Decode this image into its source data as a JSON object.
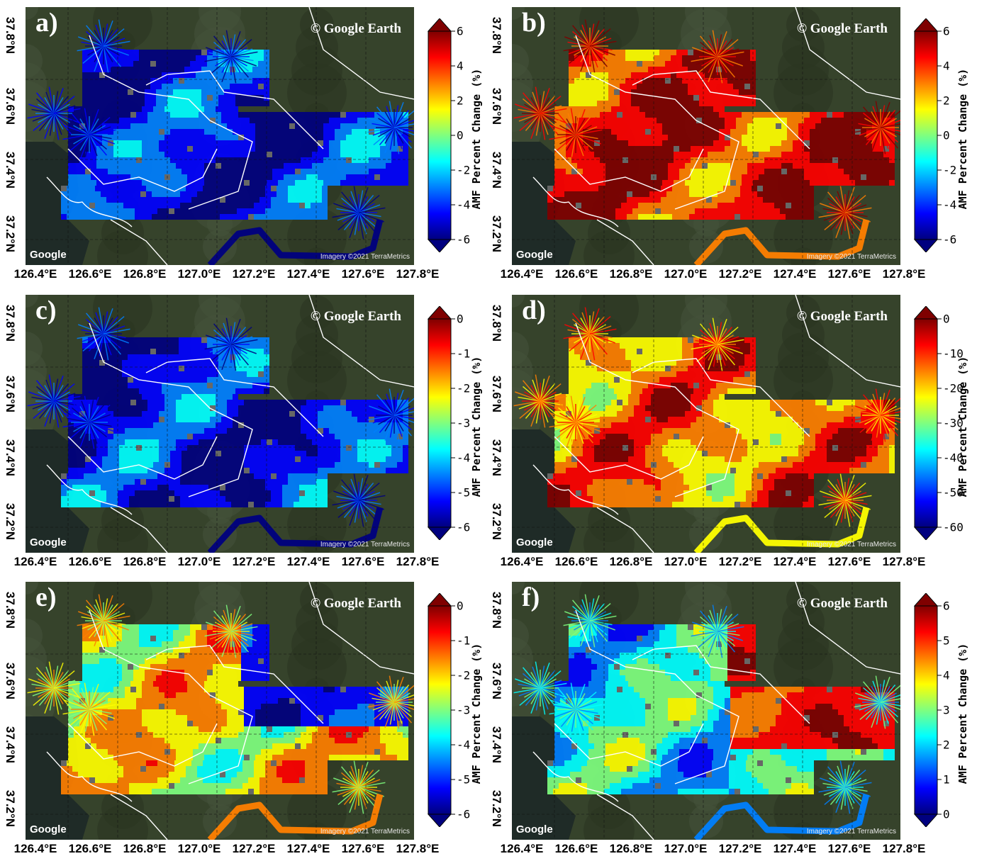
{
  "common": {
    "credit": "© Google Earth",
    "google_logo": "Google",
    "imagery": "Imagery ©2021 TerraMetrics",
    "lat_labels": [
      "37.8°N",
      "37.6°N",
      "37.4°N",
      "37.2°N"
    ],
    "lon_labels": [
      "126.4°E",
      "126.6°E",
      "126.8°E",
      "127.0°E",
      "127.2°E",
      "127.4°E",
      "127.6°E",
      "127.8°E"
    ],
    "colorbar_label": "AMF Percent Change (%)"
  },
  "panels": [
    {
      "id": "a",
      "label": "a)",
      "ticks": [
        "6",
        "4",
        "2",
        "0",
        "-2",
        "-4",
        "-6"
      ],
      "scale": "jet",
      "dominant": "blue"
    },
    {
      "id": "b",
      "label": "b)",
      "ticks": [
        "6",
        "4",
        "2",
        "0",
        "-2",
        "-4",
        "-6"
      ],
      "scale": "jet",
      "dominant": "red"
    },
    {
      "id": "c",
      "label": "c)",
      "ticks": [
        "0",
        "-1",
        "-2",
        "-3",
        "-4",
        "-5",
        "-6"
      ],
      "scale": "jet",
      "dominant": "blue"
    },
    {
      "id": "d",
      "label": "d)",
      "ticks": [
        "0",
        "-10",
        "-20",
        "-30",
        "-40",
        "-50",
        "-60"
      ],
      "scale": "jet",
      "dominant": "orange"
    },
    {
      "id": "e",
      "label": "e)",
      "ticks": [
        "0",
        "-1",
        "-2",
        "-3",
        "-4",
        "-5",
        "-6"
      ],
      "scale": "jet",
      "dominant": "yellow"
    },
    {
      "id": "f",
      "label": "f)",
      "ticks": [
        "6",
        "5",
        "4",
        "3",
        "2",
        "1",
        "0"
      ],
      "scale": "jet",
      "dominant": "cyan"
    }
  ],
  "colors": {
    "jet": [
      "#00007f",
      "#0000ff",
      "#007fff",
      "#00ffff",
      "#7fff7f",
      "#ffff00",
      "#ff7f00",
      "#ff0000",
      "#7f0000"
    ],
    "terrain": "#36432b",
    "water": "#1f2b27",
    "boundary": "#ffffff"
  }
}
